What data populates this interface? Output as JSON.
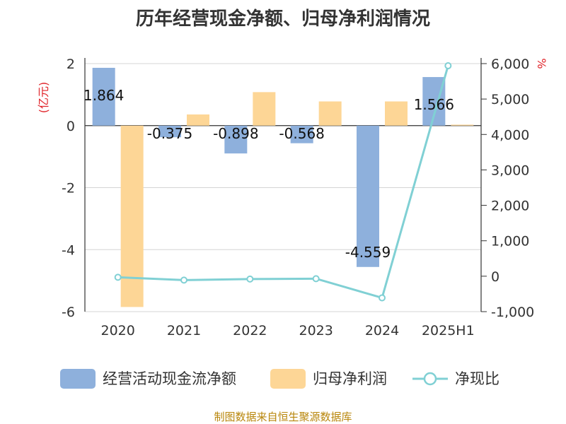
{
  "title": "历年经营现金净额、归母净利润情况",
  "source": "制图数据来自恒生聚源数据库",
  "colors": {
    "operating_cash": "#8eb0dc",
    "net_profit": "#fdd696",
    "ratio": "#80d0d4",
    "title": "#333333",
    "unit": "#e0242a",
    "source": "#b8860b"
  },
  "chart_data": {
    "type": "bar",
    "title": "历年经营现金净额、归母净利润情况",
    "categories": [
      "2020",
      "2021",
      "2022",
      "2023",
      "2024",
      "2025H1"
    ],
    "y_left": {
      "label": "(亿元)",
      "range": [
        -6,
        2
      ],
      "ticks": [
        "2",
        "0",
        "-2",
        "-4",
        "-6"
      ],
      "tick_values": [
        2,
        0,
        -2,
        -4,
        -6
      ]
    },
    "y_right": {
      "label": "%",
      "range": [
        -1000,
        6000
      ],
      "ticks": [
        "6,000",
        "5,000",
        "4,000",
        "3,000",
        "2,000",
        "1,000",
        "0",
        "-1,000"
      ],
      "tick_values": [
        6000,
        5000,
        4000,
        3000,
        2000,
        1000,
        0,
        -1000
      ]
    },
    "series": [
      {
        "name": "经营活动现金流净额",
        "type": "bar",
        "axis": "left",
        "values": [
          1.864,
          -0.375,
          -0.898,
          -0.568,
          -4.559,
          1.566
        ],
        "labels": [
          "1.864",
          "-0.375",
          "-0.898",
          "-0.568",
          "-4.559",
          "1.566"
        ]
      },
      {
        "name": "归母净利润",
        "type": "bar",
        "axis": "left",
        "values": [
          -5.85,
          0.36,
          1.08,
          0.78,
          0.78,
          0.03
        ]
      },
      {
        "name": "净现比",
        "type": "line",
        "axis": "right",
        "values": [
          -30,
          -110,
          -80,
          -70,
          -610,
          5940
        ]
      }
    ],
    "grid": true,
    "legend_position": "bottom"
  }
}
